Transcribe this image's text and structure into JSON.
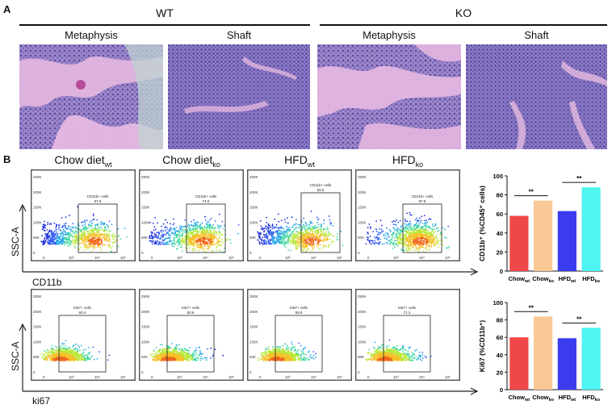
{
  "panelA": {
    "letter": "A",
    "groups": [
      {
        "label": "WT",
        "subs": [
          "Metaphysis",
          "Shaft"
        ]
      },
      {
        "label": "KO",
        "subs": [
          "Metaphysis",
          "Shaft"
        ]
      }
    ]
  },
  "panelB": {
    "letter": "B",
    "conditions": [
      {
        "main": "Chow diet",
        "sub": "wt"
      },
      {
        "main": "Chow diet",
        "sub": "ko"
      },
      {
        "main": "HFD",
        "sub": "wt"
      },
      {
        "main": "HFD",
        "sub": "ko"
      }
    ],
    "y_axis_label": "SSC-A",
    "rows": [
      {
        "x_axis_label": "CD11b",
        "gate_label": "CD11b+ cells",
        "values": [
          "57.9",
          "74.0",
          "62.9",
          "87.9"
        ]
      },
      {
        "x_axis_label": "ki67",
        "gate_label": "Ki67+ cells",
        "values": [
          "60.4",
          "83.6",
          "59.5",
          "71.3"
        ]
      }
    ],
    "flow_y_ticks": [
      "250K",
      "200K",
      "150K",
      "100K",
      "50K",
      "0"
    ],
    "flow_x_ticks": [
      "0",
      "10³",
      "10⁴",
      "10⁵"
    ]
  },
  "chart_data": [
    {
      "type": "bar",
      "categories": [
        {
          "main": "Chow",
          "sub": "wt"
        },
        {
          "main": "Chow",
          "sub": "ko"
        },
        {
          "main": "HFD",
          "sub": "wt"
        },
        {
          "main": "HFD",
          "sub": "ko"
        }
      ],
      "values": [
        58,
        74,
        63,
        88
      ],
      "colors": [
        "#f04848",
        "#f9c895",
        "#3b3bef",
        "#4ff5f0"
      ],
      "ylabel": "CD11b⁺ (%CD45⁺ cells)",
      "ylim": [
        0,
        100
      ],
      "yticks": [
        0,
        20,
        40,
        60,
        80,
        100
      ],
      "significance": [
        {
          "pair": [
            0,
            1
          ],
          "label": "**"
        },
        {
          "pair": [
            2,
            3
          ],
          "label": "**"
        }
      ]
    },
    {
      "type": "bar",
      "categories": [
        {
          "main": "Chow",
          "sub": "wt"
        },
        {
          "main": "Chow",
          "sub": "ko"
        },
        {
          "main": "HFD",
          "sub": "wt"
        },
        {
          "main": "HFD",
          "sub": "ko"
        }
      ],
      "values": [
        60,
        84,
        59,
        71
      ],
      "colors": [
        "#f04848",
        "#f9c895",
        "#3b3bef",
        "#4ff5f0"
      ],
      "ylabel": "Ki67 (%CD11b⁺)",
      "ylim": [
        0,
        100
      ],
      "yticks": [
        0,
        20,
        40,
        60,
        80,
        100
      ],
      "significance": [
        {
          "pair": [
            0,
            1
          ],
          "label": "**"
        },
        {
          "pair": [
            2,
            3
          ],
          "label": "**"
        }
      ]
    }
  ]
}
